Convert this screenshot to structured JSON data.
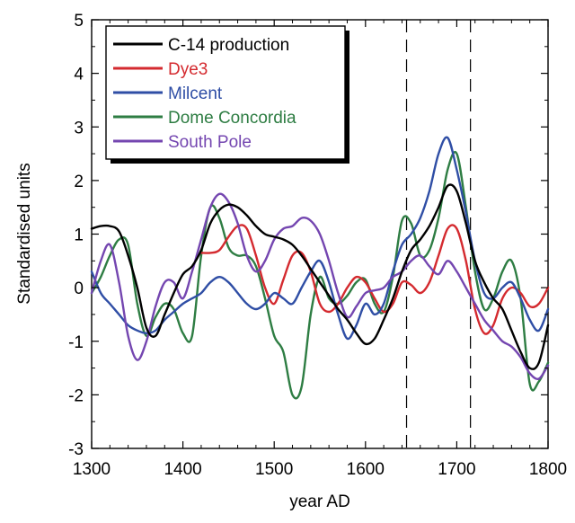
{
  "chart_data": {
    "type": "line",
    "title": "",
    "xlabel": "year AD",
    "ylabel": "Standardised units",
    "xlim": [
      1300,
      1800
    ],
    "ylim": [
      -3,
      5
    ],
    "xticks": [
      1300,
      1400,
      1500,
      1600,
      1700,
      1800
    ],
    "yticks": [
      -3,
      -2,
      -1,
      0,
      1,
      2,
      3,
      4,
      5
    ],
    "grid": false,
    "legend_position": "top-left",
    "vlines": [
      1645,
      1715
    ],
    "series": [
      {
        "name": "C-14 production",
        "color": "#000000",
        "x": [
          1300,
          1310,
          1320,
          1330,
          1340,
          1350,
          1360,
          1370,
          1380,
          1390,
          1400,
          1410,
          1420,
          1430,
          1440,
          1450,
          1460,
          1470,
          1480,
          1490,
          1500,
          1510,
          1520,
          1530,
          1540,
          1550,
          1560,
          1570,
          1580,
          1590,
          1600,
          1610,
          1620,
          1630,
          1640,
          1650,
          1660,
          1670,
          1680,
          1690,
          1700,
          1710,
          1720,
          1730,
          1740,
          1750,
          1760,
          1770,
          1780,
          1790,
          1800
        ],
        "y": [
          1.1,
          1.15,
          1.15,
          1.05,
          0.6,
          0.0,
          -0.75,
          -0.9,
          -0.5,
          -0.1,
          0.25,
          0.4,
          0.7,
          1.2,
          1.45,
          1.55,
          1.5,
          1.35,
          1.15,
          1.0,
          0.95,
          0.9,
          0.8,
          0.6,
          0.35,
          0.1,
          -0.15,
          -0.4,
          -0.6,
          -0.85,
          -1.05,
          -0.95,
          -0.6,
          -0.2,
          0.3,
          0.7,
          0.9,
          1.15,
          1.5,
          1.9,
          1.8,
          1.2,
          0.5,
          0.1,
          -0.2,
          -0.4,
          -0.8,
          -1.2,
          -1.5,
          -1.4,
          -0.7
        ]
      },
      {
        "name": "Dye3",
        "color": "#d42a2f",
        "x": [
          1420,
          1430,
          1440,
          1450,
          1460,
          1470,
          1480,
          1490,
          1500,
          1510,
          1520,
          1530,
          1540,
          1550,
          1560,
          1570,
          1580,
          1590,
          1600,
          1610,
          1620,
          1630,
          1640,
          1650,
          1660,
          1670,
          1680,
          1690,
          1700,
          1710,
          1720,
          1730,
          1740,
          1750,
          1760,
          1770,
          1780,
          1790,
          1800
        ],
        "y": [
          0.65,
          0.65,
          0.7,
          0.95,
          1.15,
          1.1,
          0.6,
          0.0,
          -0.3,
          0.15,
          0.6,
          0.65,
          0.3,
          -0.3,
          -0.45,
          -0.3,
          0.0,
          0.2,
          0.1,
          -0.2,
          -0.45,
          -0.3,
          0.1,
          0.05,
          -0.1,
          0.1,
          0.6,
          1.1,
          1.1,
          0.5,
          -0.4,
          -0.85,
          -0.7,
          -0.2,
          0.0,
          -0.1,
          -0.35,
          -0.3,
          0.0
        ]
      },
      {
        "name": "Milcent",
        "color": "#2f4ea5",
        "x": [
          1300,
          1310,
          1320,
          1330,
          1340,
          1350,
          1360,
          1370,
          1380,
          1390,
          1400,
          1410,
          1420,
          1430,
          1440,
          1450,
          1460,
          1470,
          1480,
          1490,
          1500,
          1510,
          1520,
          1530,
          1540,
          1550,
          1560,
          1570,
          1580,
          1590,
          1600,
          1610,
          1620,
          1630,
          1640,
          1650,
          1660,
          1670,
          1680,
          1690,
          1700,
          1710,
          1720,
          1730,
          1740,
          1750,
          1760,
          1770,
          1780,
          1790,
          1800
        ],
        "y": [
          0.3,
          -0.1,
          -0.3,
          -0.5,
          -0.7,
          -0.8,
          -0.85,
          -0.8,
          -0.6,
          -0.45,
          -0.3,
          -0.2,
          -0.1,
          0.1,
          0.2,
          0.1,
          -0.1,
          -0.3,
          -0.4,
          -0.3,
          -0.1,
          -0.2,
          -0.3,
          0.0,
          0.3,
          0.5,
          0.1,
          -0.5,
          -0.95,
          -0.7,
          -0.3,
          -0.5,
          -0.3,
          0.3,
          0.8,
          1.0,
          1.3,
          1.8,
          2.5,
          2.8,
          2.2,
          1.4,
          0.5,
          -0.1,
          -0.2,
          0.0,
          0.1,
          -0.2,
          -0.6,
          -0.8,
          -0.4
        ]
      },
      {
        "name": "Dome Concordia",
        "color": "#2e7d43",
        "x": [
          1300,
          1310,
          1320,
          1330,
          1340,
          1350,
          1360,
          1370,
          1380,
          1390,
          1400,
          1410,
          1420,
          1430,
          1440,
          1450,
          1460,
          1470,
          1480,
          1490,
          1500,
          1510,
          1520,
          1530,
          1540,
          1550,
          1560,
          1570,
          1580,
          1590,
          1600,
          1610,
          1620,
          1630,
          1640,
          1650,
          1660,
          1670,
          1680,
          1690,
          1700,
          1710,
          1720,
          1730,
          1740,
          1750,
          1760,
          1770,
          1780,
          1790,
          1800
        ],
        "y": [
          -0.1,
          0.2,
          0.6,
          0.9,
          0.8,
          -0.3,
          -0.9,
          -0.55,
          -0.3,
          -0.4,
          -0.85,
          -0.9,
          0.6,
          1.5,
          1.3,
          0.75,
          0.6,
          0.6,
          0.4,
          -0.2,
          -0.9,
          -1.2,
          -2.0,
          -1.85,
          -0.5,
          0.2,
          -0.2,
          -0.3,
          -0.15,
          0.1,
          0.15,
          -0.3,
          -0.45,
          0.2,
          1.25,
          1.2,
          0.6,
          0.7,
          1.3,
          2.2,
          2.5,
          1.5,
          0.3,
          -0.4,
          -0.2,
          0.3,
          0.5,
          -0.2,
          -1.8,
          -1.75,
          -1.4
        ]
      },
      {
        "name": "South Pole",
        "color": "#7446b0",
        "x": [
          1300,
          1310,
          1320,
          1330,
          1340,
          1350,
          1360,
          1370,
          1380,
          1390,
          1400,
          1410,
          1420,
          1430,
          1440,
          1450,
          1460,
          1470,
          1480,
          1490,
          1500,
          1510,
          1520,
          1530,
          1540,
          1550,
          1560,
          1570,
          1580,
          1590,
          1600,
          1610,
          1620,
          1630,
          1640,
          1650,
          1660,
          1670,
          1680,
          1690,
          1700,
          1710,
          1720,
          1730,
          1740,
          1750,
          1760,
          1770,
          1780,
          1790,
          1800
        ],
        "y": [
          -0.1,
          0.5,
          0.8,
          0.1,
          -0.9,
          -1.35,
          -1.0,
          -0.35,
          0.1,
          0.1,
          -0.2,
          0.3,
          0.9,
          1.5,
          1.75,
          1.6,
          1.2,
          0.6,
          0.3,
          0.5,
          0.9,
          1.1,
          1.15,
          1.3,
          1.25,
          1.0,
          0.5,
          -0.1,
          -0.55,
          -0.35,
          -0.1,
          -0.05,
          0.0,
          0.2,
          0.3,
          0.5,
          0.6,
          0.4,
          0.25,
          0.5,
          0.3,
          0.0,
          -0.3,
          -0.6,
          -0.8,
          -1.0,
          -1.1,
          -1.3,
          -1.6,
          -1.7,
          -1.45
        ]
      }
    ]
  }
}
